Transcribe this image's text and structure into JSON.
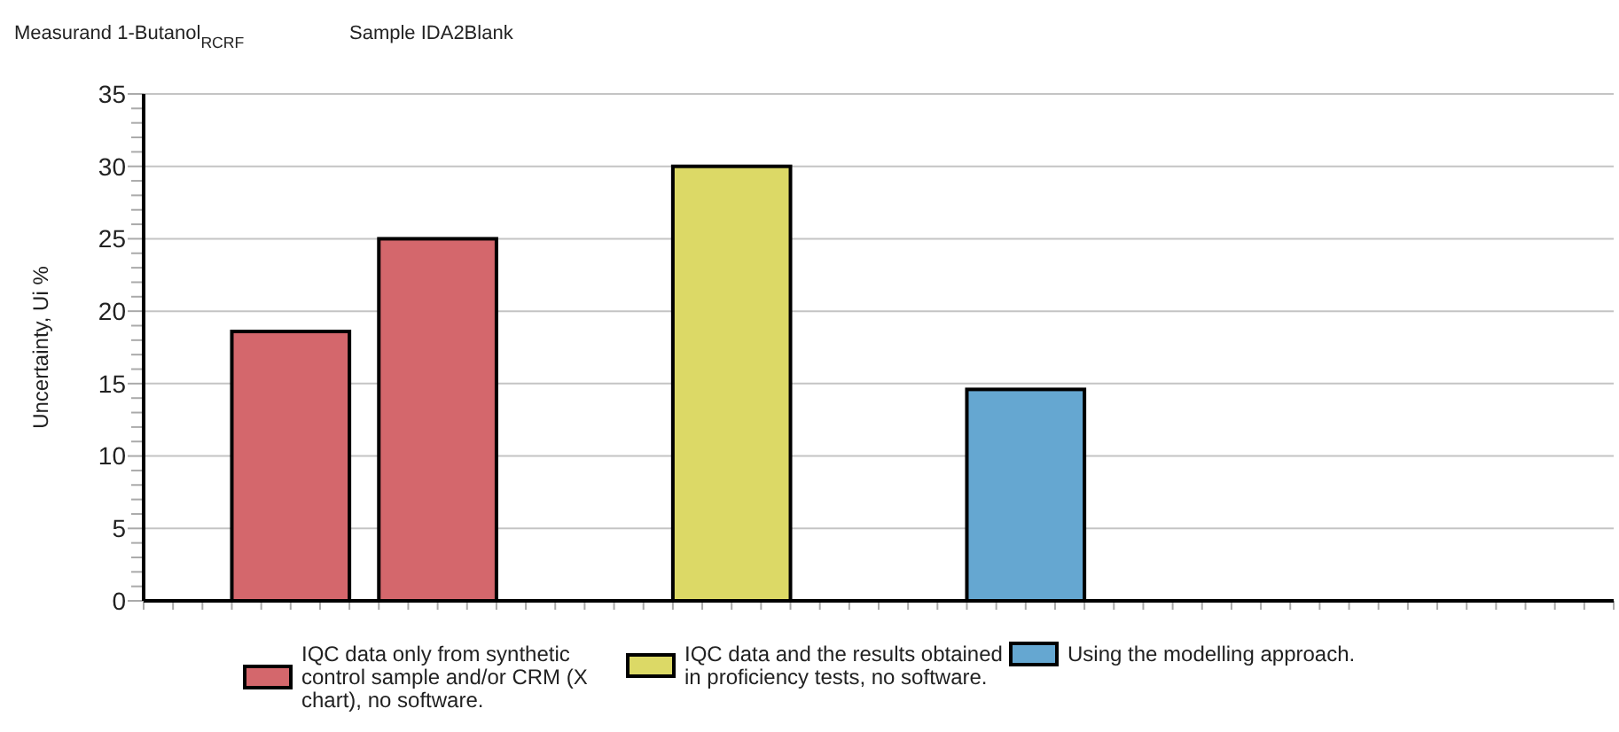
{
  "chart_data": {
    "type": "bar",
    "title": "Measurand 1-Butanol$_{RCRF}$",
    "subtitle": "Sample IDA2Blank",
    "ylabel": "Uncertainty, Ui %",
    "categories": [
      null,
      null,
      null,
      null,
      null,
      null,
      null,
      null,
      null
    ],
    "series": [
      {
        "name": "IQC data only from synthetic control sample and/or CRM (X chart), no software.",
        "color": "#d4676c",
        "values": [
          18.6,
          25,
          null,
          null,
          null,
          null,
          null,
          null,
          null
        ]
      },
      {
        "name": "IQC data and the results obtained in proficiency tests, no software.",
        "color": "#dcd966",
        "values": [
          null,
          null,
          null,
          30,
          null,
          null,
          null,
          null,
          null
        ]
      },
      {
        "name": "Using the modelling approach.",
        "color": "#65a7d1",
        "values": [
          null,
          null,
          null,
          null,
          null,
          14.6,
          null,
          null,
          null
        ]
      }
    ],
    "ylim": [
      0,
      35
    ],
    "yticks": [
      0,
      {
        "value": 1,
        "label": null
      },
      {
        "value": 2,
        "label": null
      },
      {
        "value": 3,
        "label": null
      },
      {
        "value": 4,
        "label": null
      },
      5,
      {
        "value": 6,
        "label": null
      },
      {
        "value": 7,
        "label": null
      },
      {
        "value": 8,
        "label": null
      },
      {
        "value": 9,
        "label": null
      },
      10,
      {
        "value": 11,
        "label": null
      },
      {
        "value": 12,
        "label": null
      },
      {
        "value": 13,
        "label": null
      },
      {
        "value": 14,
        "label": null
      },
      15,
      {
        "value": 16,
        "label": null
      },
      {
        "value": 17,
        "label": null
      },
      {
        "value": 18,
        "label": null
      },
      {
        "value": 19,
        "label": null
      },
      20,
      {
        "value": 21,
        "label": null
      },
      {
        "value": 22,
        "label": null
      },
      {
        "value": 23,
        "label": null
      },
      {
        "value": 24,
        "label": null
      },
      25,
      {
        "value": 26,
        "label": null
      },
      {
        "value": 27,
        "label": null
      },
      {
        "value": 28,
        "label": null
      },
      {
        "value": 29,
        "label": null
      },
      30,
      {
        "value": 31,
        "label": null
      },
      {
        "value": 32,
        "label": null
      },
      {
        "value": 33,
        "label": null
      },
      {
        "value": 34,
        "label": null
      },
      35
    ],
    "grid": "y",
    "legend": "bottom"
  }
}
